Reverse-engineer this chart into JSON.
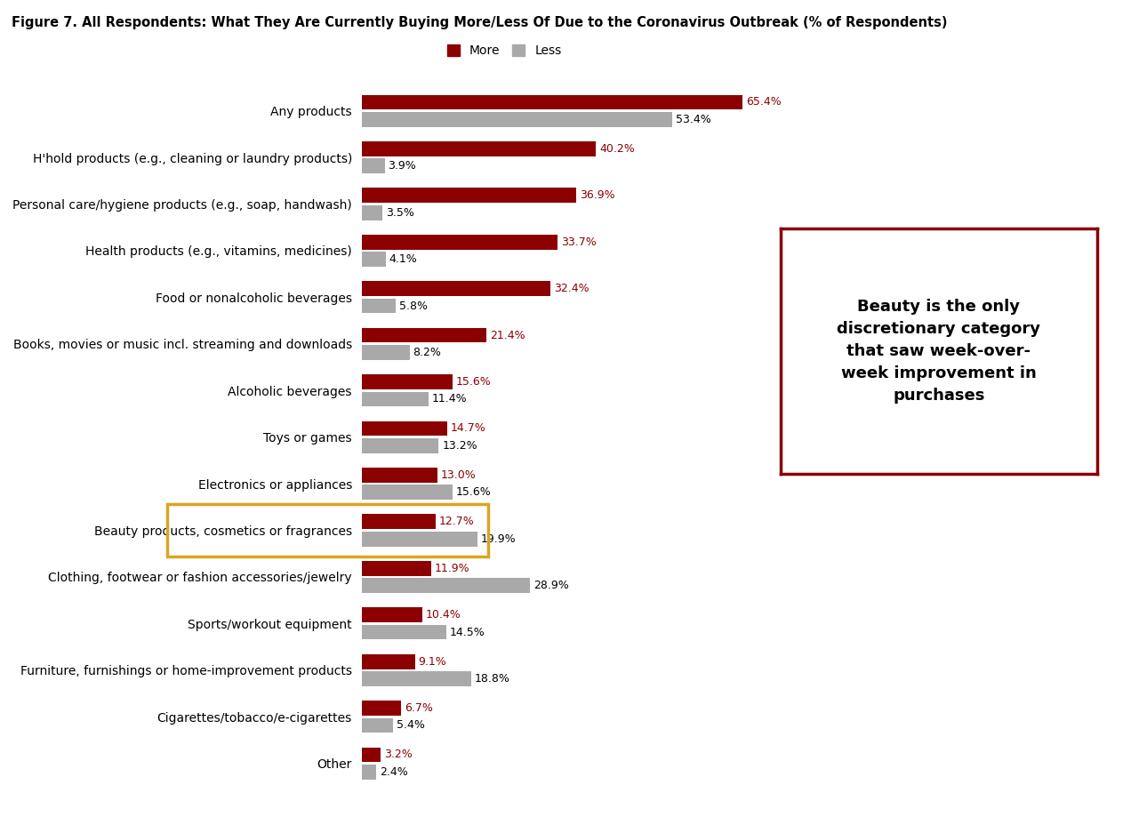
{
  "title": "Figure 7. All Respondents: What They Are Currently Buying More/Less Of Due to the Coronavirus Outbreak (% of Respondents)",
  "categories": [
    "Any products",
    "H'hold products (e.g., cleaning or laundry products)",
    "Personal care/hygiene products (e.g., soap, handwash)",
    "Health products (e.g., vitamins, medicines)",
    "Food or nonalcoholic beverages",
    "Books, movies or music incl. streaming and downloads",
    "Alcoholic beverages",
    "Toys or games",
    "Electronics or appliances",
    "Beauty products, cosmetics or fragrances",
    "Clothing, footwear or fashion accessories/jewelry",
    "Sports/workout equipment",
    "Furniture, furnishings or home-improvement products",
    "Cigarettes/tobacco/e-cigarettes",
    "Other"
  ],
  "more_values": [
    65.4,
    40.2,
    36.9,
    33.7,
    32.4,
    21.4,
    15.6,
    14.7,
    13.0,
    12.7,
    11.9,
    10.4,
    9.1,
    6.7,
    3.2
  ],
  "less_values": [
    53.4,
    3.9,
    3.5,
    4.1,
    5.8,
    8.2,
    11.4,
    13.2,
    15.6,
    19.9,
    28.9,
    14.5,
    18.8,
    5.4,
    2.4
  ],
  "more_color": "#8B0000",
  "less_color": "#A9A9A9",
  "more_label": "More",
  "less_label": "Less",
  "background_color": "#FFFFFF",
  "annotation_text": "Beauty is the only\ndiscretionary category\nthat saw week-over-\nweek improvement in\npurchases",
  "annotation_box_color": "#8B0000",
  "highlight_category_index": 9,
  "highlight_box_color": "#DAA520",
  "bar_height": 0.32,
  "xlim": [
    0,
    70
  ],
  "figsize": [
    12.72,
    9.19
  ],
  "dpi": 100
}
